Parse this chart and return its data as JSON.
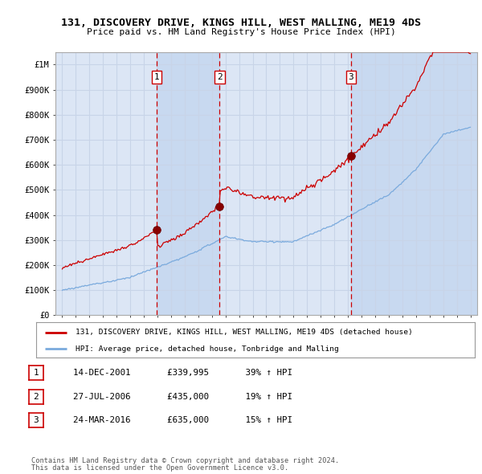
{
  "title1": "131, DISCOVERY DRIVE, KINGS HILL, WEST MALLING, ME19 4DS",
  "title2": "Price paid vs. HM Land Registry's House Price Index (HPI)",
  "background_color": "#ffffff",
  "plot_bg_color": "#dce6f5",
  "grid_color": "#c8d4e8",
  "red_line_color": "#cc0000",
  "blue_line_color": "#7aaadd",
  "sale_marker_color": "#880000",
  "vline_color": "#cc0000",
  "shade_color": "#c0d4ee",
  "purchase_dates": [
    2001.96,
    2006.57,
    2016.23
  ],
  "purchase_prices": [
    339995,
    435000,
    635000
  ],
  "purchase_labels": [
    "1",
    "2",
    "3"
  ],
  "table_rows": [
    [
      "1",
      "14-DEC-2001",
      "£339,995",
      "39% ↑ HPI"
    ],
    [
      "2",
      "27-JUL-2006",
      "£435,000",
      "19% ↑ HPI"
    ],
    [
      "3",
      "24-MAR-2016",
      "£635,000",
      "15% ↑ HPI"
    ]
  ],
  "legend_line1": "131, DISCOVERY DRIVE, KINGS HILL, WEST MALLING, ME19 4DS (detached house)",
  "legend_line2": "HPI: Average price, detached house, Tonbridge and Malling",
  "footer1": "Contains HM Land Registry data © Crown copyright and database right 2024.",
  "footer2": "This data is licensed under the Open Government Licence v3.0.",
  "ylim": [
    0,
    1050000
  ],
  "xlim_start": 1994.5,
  "xlim_end": 2025.5
}
